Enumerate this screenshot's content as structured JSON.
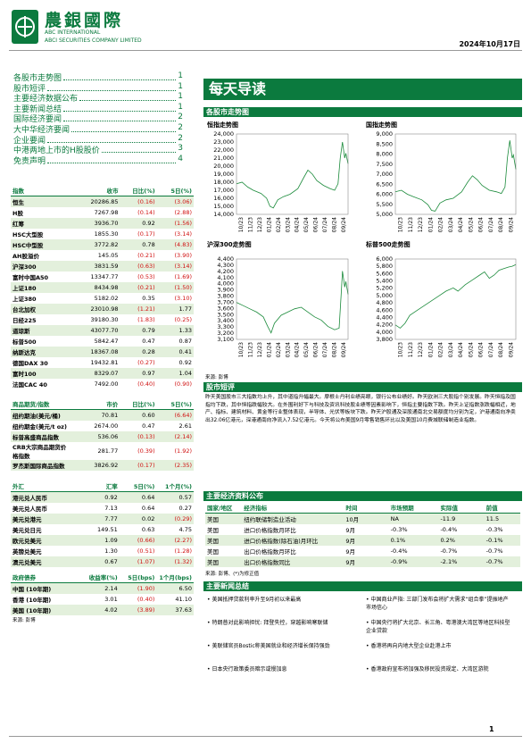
{
  "header": {
    "logo_cn": "農銀國際",
    "logo_en1": "ABC INTERNATIONAL",
    "logo_en2": "ABCI SECURITIES COMPANY LIMITED",
    "date": "2024年10月17日"
  },
  "toc": [
    {
      "title": "各股市走势图",
      "page": "1"
    },
    {
      "title": "股市短评",
      "page": "1"
    },
    {
      "title": "主要经济数据公布",
      "page": "1"
    },
    {
      "title": "主要新闻总结",
      "page": "1"
    },
    {
      "title": "国际经济要闻",
      "page": "2"
    },
    {
      "title": "大中华经济要闻",
      "page": "2"
    },
    {
      "title": "企业要闻",
      "page": "2"
    },
    {
      "title": "中港两地上市的H股股价",
      "page": "3"
    },
    {
      "title": "免责声明",
      "page": "4"
    }
  ],
  "banner": "每天导读",
  "market_charts": {
    "title": "各股市走势图",
    "source": "来源: 彭博",
    "charts": [
      {
        "title": "恒指走势图",
        "yticks": [
          "24,000",
          "23,000",
          "22,000",
          "21,000",
          "20,000",
          "19,000",
          "18,000",
          "17,000",
          "16,000",
          "15,000",
          "14,000"
        ]
      },
      {
        "title": "国指走势图",
        "yticks": [
          "9,000",
          "8,500",
          "8,000",
          "7,500",
          "7,000",
          "6,500",
          "6,000",
          "5,500",
          "5,000"
        ]
      },
      {
        "title": "沪深300走势图",
        "yticks": [
          "4,400",
          "4,300",
          "4,200",
          "4,100",
          "4,000",
          "3,900",
          "3,800",
          "3,700",
          "3,600",
          "3,500",
          "3,400",
          "3,300",
          "3,200",
          "3,100"
        ]
      },
      {
        "title": "标普500走势图",
        "yticks": [
          "6,000",
          "5,800",
          "5,600",
          "5,400",
          "5,200",
          "5,000",
          "4,800",
          "4,600",
          "4,400",
          "4,200",
          "4,000",
          "3,800"
        ]
      }
    ],
    "xticks": [
      "10/23",
      "11/23",
      "12/23",
      "01/24",
      "02/24",
      "03/24",
      "04/24",
      "05/24",
      "06/24",
      "07/24",
      "08/24",
      "09/24"
    ]
  },
  "commentary": {
    "title": "股市短评",
    "text": "昨天美国股市三大指数均上升，其中道指升幅最大。摩根士丹利业绩亮眼，银行公布业绩好。昨天欧洲三大股指个别发展。昨天恒指及国指均下跌，其中恒指跌幅较大。在外围利好下与科技及资讯科技股业绩等因素影响下，恒指主要指数下跌。昨天上证指数涨跌幅相近，地产、指标、建筑材料、黄金等行业整体表现，半导体、光伏等板块下跌。昨天沪股通及深股通南北交易额度均分别为定，沪港通南向净卖出32.06亿港元，深港通南向净流入7.52亿港元。今天将公布美国9月零售销售环比以及美国10月费城联储制造业指数。"
  },
  "indices": {
    "headers": [
      "指数",
      "收市",
      "日比(%)",
      "5日(%)"
    ],
    "rows": [
      [
        "恒生",
        "20286.85",
        "(0.16)",
        "(3.06)"
      ],
      [
        "H股",
        "7267.98",
        "(0.14)",
        "(2.88)"
      ],
      [
        "红筹",
        "3936.70",
        "0.92",
        "(1.56)"
      ],
      [
        "HSC大型股",
        "1855.30",
        "(0.17)",
        "(3.14)"
      ],
      [
        "HSC中型股",
        "3772.82",
        "0.78",
        "(4.83)"
      ],
      [
        "AH股溢价",
        "145.05",
        "(0.21)",
        "(3.90)"
      ],
      [
        "沪深300",
        "3831.59",
        "(0.63)",
        "(3.14)"
      ],
      [
        "富时中国A50",
        "13347.77",
        "(0.53)",
        "(1.69)"
      ],
      [
        "上证180",
        "8434.98",
        "(0.21)",
        "(1.50)"
      ],
      [
        "上证380",
        "5182.02",
        "0.35",
        "(3.10)"
      ],
      [
        "台北加权",
        "23010.98",
        "(1.21)",
        "1.77"
      ],
      [
        "日经225",
        "39180.30",
        "(1.83)",
        "(0.25)"
      ],
      [
        "道琼斯",
        "43077.70",
        "0.79",
        "1.33"
      ],
      [
        "标普500",
        "5842.47",
        "0.47",
        "0.87"
      ],
      [
        "纳斯达克",
        "18367.08",
        "0.28",
        "0.41"
      ],
      [
        "德国DAX 30",
        "19432.81",
        "(0.27)",
        "0.92"
      ],
      [
        "富时100",
        "8329.07",
        "0.97",
        "1.04"
      ],
      [
        "法国CAC 40",
        "7492.00",
        "(0.40)",
        "(0.90)"
      ]
    ]
  },
  "commodities": {
    "headers": [
      "商品期货/指数",
      "市价",
      "日比(%)",
      "5日(%)"
    ],
    "rows": [
      [
        "纽约期油(美元/桶)",
        "70.81",
        "0.60",
        "(6.64)"
      ],
      [
        "纽约期金(美元/t oz)",
        "2674.00",
        "0.47",
        "2.61"
      ],
      [
        "标普高盛商品指数",
        "536.06",
        "(0.13)",
        "(2.14)"
      ],
      [
        "CRB大宗商品期货价格指数",
        "281.77",
        "(0.39)",
        "(1.92)"
      ],
      [
        "罗杰斯国际商品指数",
        "3826.92",
        "(0.17)",
        "(2.35)"
      ]
    ]
  },
  "fx": {
    "headers": [
      "外汇",
      "汇率",
      "5日(%)",
      "1个月(%)"
    ],
    "rows": [
      [
        "港元兑人民币",
        "0.92",
        "0.64",
        "0.57"
      ],
      [
        "美元兑人民币",
        "7.13",
        "0.64",
        "0.27"
      ],
      [
        "美元兑港元",
        "7.77",
        "0.02",
        "(0.29)"
      ],
      [
        "美元兑日元",
        "149.51",
        "0.63",
        "4.75"
      ],
      [
        "欧元兑美元",
        "1.09",
        "(0.66)",
        "(2.27)"
      ],
      [
        "英镑兑美元",
        "1.30",
        "(0.51)",
        "(1.28)"
      ],
      [
        "澳元兑美元",
        "0.67",
        "(1.07)",
        "(1.32)"
      ]
    ]
  },
  "bonds": {
    "headers": [
      "政府债券",
      "收益率(%)",
      "5日(bps)",
      "1个月(bps)"
    ],
    "rows": [
      [
        "中国 (10年期)",
        "2.14",
        "(1.90)",
        "6.50"
      ],
      [
        "香港 (10年期)",
        "3.01",
        "(0.40)",
        "41.10"
      ],
      [
        "美国 (10年期)",
        "4.02",
        "(3.89)",
        "37.63"
      ]
    ],
    "source": "来源: 彭博"
  },
  "economic": {
    "title": "主要经济资料公布",
    "headers": [
      "国家/地区",
      "经济指标",
      "时间",
      "市场预期",
      "实际值",
      "前值"
    ],
    "rows": [
      [
        "美国",
        "纽约联储制造业活动",
        "10月",
        "NA",
        "-11.9",
        "11.5"
      ],
      [
        "美国",
        "进口价格指数月环比",
        "9月",
        "-0.3%",
        "-0.4%",
        "-0.3%"
      ],
      [
        "美国",
        "进口价格指数(除石油)月环比",
        "9月",
        "0.1%",
        "0.2%",
        "-0.1%"
      ],
      [
        "美国",
        "出口价格指数月环比",
        "9月",
        "-0.4%",
        "-0.7%",
        "-0.7%"
      ],
      [
        "美国",
        "出口价格指数同比",
        "9月",
        "-0.9%",
        "-2.1%",
        "-0.7%"
      ]
    ],
    "source": "来源: 彭博、(*)为修正值"
  },
  "news": {
    "title": "主要新闻总结",
    "left": [
      "美国抵押贷款利率升至9月初以来最高",
      "特朗普对此影响担忧: 拜登失控，穿越影响寒联储",
      "美联储官员Bostic称美国就业和经济增长保持强劲",
      "日本央行政策委员暗示或慢加息"
    ],
    "right": [
      "中国商业产指: 三部门发布会将扩大需求“组合拳”提振地产市场信心",
      "中国央行将扩大北京、长三角、粤港澳大湾区等地区科技型企业贷款",
      "香港将再向内地大型企业赴港上市",
      "香港政府宣布将加强及移民投资规定、大湾区游院"
    ]
  },
  "page_number": "1"
}
